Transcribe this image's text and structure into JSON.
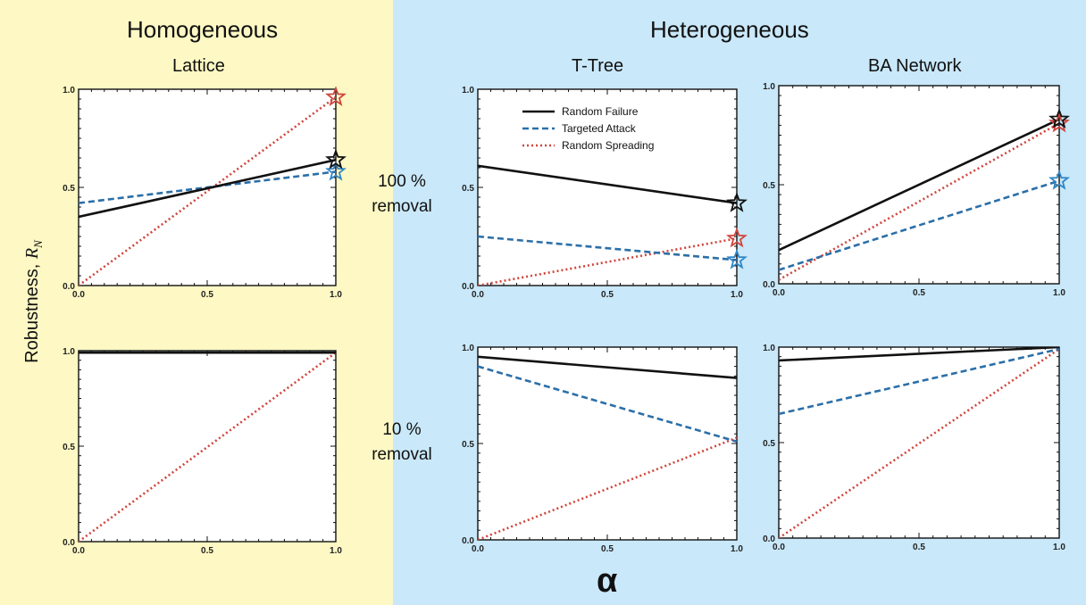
{
  "groups": {
    "homogeneous": "Homogeneous",
    "heterogeneous": "Heterogeneous"
  },
  "panel_titles": {
    "lattice": "Lattice",
    "ttree": "T-Tree",
    "ba": "BA Network"
  },
  "row_labels": {
    "top_pct": "100 %",
    "top_word": "removal",
    "bottom_pct": "10 %",
    "bottom_word": "removal"
  },
  "ylabel_text": "Robustness,",
  "ylabel_symbol": "R",
  "ylabel_sub": "N",
  "xlabel": "α",
  "colors": {
    "random_failure": "#111111",
    "targeted_attack": "#2b6fa8",
    "random_spreading": "#d0453c",
    "star_blue": "#2f86c6"
  },
  "chart_data": [
    {
      "id": "lattice-100",
      "type": "line",
      "title": "",
      "xlim": [
        0,
        1
      ],
      "ylim": [
        0,
        1
      ],
      "xticks": [
        "0.0",
        "0.5",
        "1.0"
      ],
      "yticks": [
        "0.0",
        "0.5",
        "1.0"
      ],
      "series": [
        {
          "name": "Random Failure",
          "x": [
            0,
            1
          ],
          "y": [
            0.35,
            0.64
          ]
        },
        {
          "name": "Targeted Attack",
          "x": [
            0,
            1
          ],
          "y": [
            0.42,
            0.58
          ]
        },
        {
          "name": "Random Spreading",
          "x": [
            0,
            1
          ],
          "y": [
            0.0,
            0.96
          ]
        }
      ],
      "stars": [
        0.64,
        0.58,
        0.96
      ]
    },
    {
      "id": "ttree-100",
      "type": "line",
      "xlim": [
        0,
        1
      ],
      "ylim": [
        0,
        1
      ],
      "xticks": [
        "0.0",
        "0.5",
        "1.0"
      ],
      "yticks": [
        "0.0",
        "0.5",
        "1.0"
      ],
      "legend": "top-left",
      "series": [
        {
          "name": "Random Failure",
          "x": [
            0,
            1
          ],
          "y": [
            0.61,
            0.42
          ]
        },
        {
          "name": "Targeted Attack",
          "x": [
            0,
            1
          ],
          "y": [
            0.25,
            0.13
          ]
        },
        {
          "name": "Random Spreading",
          "x": [
            0,
            1
          ],
          "y": [
            0.0,
            0.24
          ]
        }
      ],
      "stars": [
        0.42,
        0.13,
        0.24
      ]
    },
    {
      "id": "ba-100",
      "type": "line",
      "xlim": [
        0,
        1
      ],
      "ylim": [
        0,
        1
      ],
      "xticks": [
        "0.0",
        "0.5",
        "1.0"
      ],
      "yticks": [
        "0.0",
        "0.5",
        "1.0"
      ],
      "series": [
        {
          "name": "Random Failure",
          "x": [
            0,
            1
          ],
          "y": [
            0.17,
            0.83
          ]
        },
        {
          "name": "Targeted Attack",
          "x": [
            0,
            1
          ],
          "y": [
            0.07,
            0.52
          ]
        },
        {
          "name": "Random Spreading",
          "x": [
            0,
            1
          ],
          "y": [
            0.02,
            0.81
          ]
        }
      ],
      "stars": [
        0.83,
        0.52,
        0.81
      ]
    },
    {
      "id": "lattice-10",
      "type": "line",
      "xlim": [
        0,
        1
      ],
      "ylim": [
        0,
        1
      ],
      "xticks": [
        "0.0",
        "0.5",
        "1.0"
      ],
      "yticks": [
        "0.0",
        "0.5",
        "1.0"
      ],
      "series": [
        {
          "name": "Random Failure",
          "x": [
            0,
            1
          ],
          "y": [
            0.99,
            0.99
          ]
        },
        {
          "name": "Targeted Attack",
          "x": [
            0,
            1
          ],
          "y": [
            0.99,
            0.99
          ]
        },
        {
          "name": "Random Spreading",
          "x": [
            0,
            1
          ],
          "y": [
            0.0,
            0.99
          ]
        }
      ]
    },
    {
      "id": "ttree-10",
      "type": "line",
      "xlim": [
        0,
        1
      ],
      "ylim": [
        0,
        1
      ],
      "xticks": [
        "0.0",
        "0.5",
        "1.0"
      ],
      "yticks": [
        "0.0",
        "0.5",
        "1.0"
      ],
      "series": [
        {
          "name": "Random Failure",
          "x": [
            0,
            1
          ],
          "y": [
            0.95,
            0.84
          ]
        },
        {
          "name": "Targeted Attack",
          "x": [
            0,
            1
          ],
          "y": [
            0.9,
            0.51
          ]
        },
        {
          "name": "Random Spreading",
          "x": [
            0,
            1
          ],
          "y": [
            0.0,
            0.53
          ]
        }
      ]
    },
    {
      "id": "ba-10",
      "type": "line",
      "xlim": [
        0,
        1
      ],
      "ylim": [
        0,
        1
      ],
      "xticks": [
        "0.0",
        "0.5",
        "1.0"
      ],
      "yticks": [
        "0.0",
        "0.5",
        "1.0"
      ],
      "series": [
        {
          "name": "Random Failure",
          "x": [
            0,
            1
          ],
          "y": [
            0.93,
            1.0
          ]
        },
        {
          "name": "Targeted Attack",
          "x": [
            0,
            1
          ],
          "y": [
            0.65,
            0.99
          ]
        },
        {
          "name": "Random Spreading",
          "x": [
            0,
            1
          ],
          "y": [
            0.0,
            0.99
          ]
        }
      ]
    }
  ]
}
